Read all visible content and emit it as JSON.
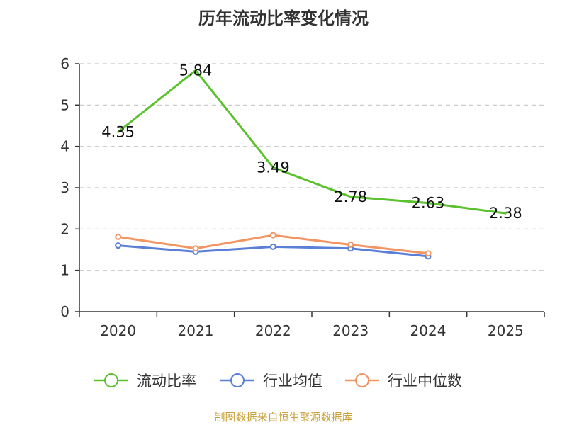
{
  "chart_data": {
    "type": "line",
    "title": "历年流动比率变化情况",
    "categories": [
      "2020",
      "2021",
      "2022",
      "2023",
      "2024",
      "2025"
    ],
    "ylim": [
      0,
      6
    ],
    "yticks": [
      0,
      1,
      2,
      3,
      4,
      5,
      6
    ],
    "grid": true,
    "legend_position": "bottom",
    "series": [
      {
        "name": "流动比率",
        "color": "#5cc12f",
        "values": [
          4.35,
          5.84,
          3.49,
          2.78,
          2.63,
          2.38
        ],
        "labels": [
          "4.35",
          "5.84",
          "3.49",
          "2.78",
          "2.63",
          "2.38"
        ],
        "markers": false,
        "show_labels": true
      },
      {
        "name": "行业均值",
        "color": "#5a7fd6",
        "values": [
          1.6,
          1.45,
          1.57,
          1.53,
          1.34,
          null
        ],
        "markers": true,
        "show_labels": false
      },
      {
        "name": "行业中位数",
        "color": "#f39563",
        "values": [
          1.81,
          1.53,
          1.85,
          1.62,
          1.41,
          null
        ],
        "markers": true,
        "show_labels": false
      }
    ]
  },
  "source": "制图数据来自恒生聚源数据库"
}
